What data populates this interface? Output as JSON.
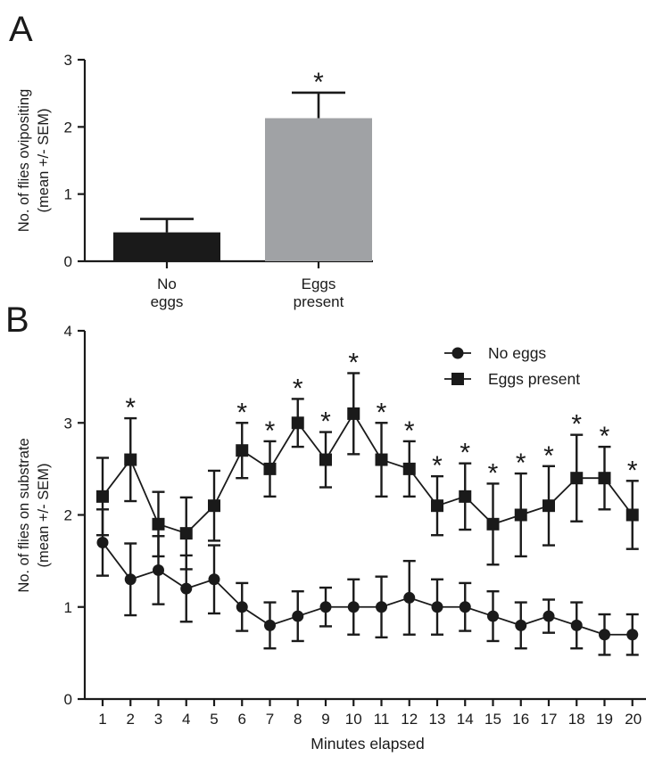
{
  "chart_data": [
    {
      "type": "bar",
      "panel_label": "A",
      "ylabel_line1": "No. of flies ovipositing",
      "ylabel_line2": "(mean +/- SEM)",
      "ylim": [
        0,
        3
      ],
      "yticks": [
        "0",
        "1",
        "2",
        "3"
      ],
      "categories": [
        {
          "line1": "No",
          "line2": "eggs"
        },
        {
          "line1": "Eggs",
          "line2": "present"
        }
      ],
      "values": [
        0.43,
        2.13
      ],
      "errors": [
        0.2,
        0.38
      ],
      "colors": [
        "#1a1a1a",
        "#a0a2a5"
      ],
      "significance": [
        "",
        "*"
      ]
    },
    {
      "type": "line",
      "panel_label": "B",
      "ylabel_line1": "No. of flies on substrate",
      "ylabel_line2": "(mean +/- SEM)",
      "xlabel": "Minutes elapsed",
      "ylim": [
        0,
        4
      ],
      "yticks": [
        "0",
        "1",
        "2",
        "3",
        "4"
      ],
      "x": [
        1,
        2,
        3,
        4,
        5,
        6,
        7,
        8,
        9,
        10,
        11,
        12,
        13,
        14,
        15,
        16,
        17,
        18,
        19,
        20
      ],
      "legend": {
        "placement": "top-right"
      },
      "series": [
        {
          "name": "No eggs",
          "marker": "circle",
          "values": [
            1.7,
            1.3,
            1.4,
            1.2,
            1.3,
            1.0,
            0.8,
            0.9,
            1.0,
            1.0,
            1.0,
            1.1,
            1.0,
            1.0,
            0.9,
            0.8,
            0.9,
            0.8,
            0.7,
            0.7
          ],
          "errors": [
            0.36,
            0.39,
            0.37,
            0.36,
            0.37,
            0.26,
            0.25,
            0.27,
            0.21,
            0.3,
            0.33,
            0.4,
            0.3,
            0.26,
            0.27,
            0.25,
            0.18,
            0.25,
            0.22,
            0.22
          ]
        },
        {
          "name": "Eggs present",
          "marker": "square",
          "values": [
            2.2,
            2.6,
            1.9,
            1.8,
            2.1,
            2.7,
            2.5,
            3.0,
            2.6,
            3.1,
            2.6,
            2.5,
            2.1,
            2.2,
            1.9,
            2.0,
            2.1,
            2.4,
            2.4,
            2.0
          ],
          "errors": [
            0.42,
            0.45,
            0.35,
            0.39,
            0.38,
            0.3,
            0.3,
            0.26,
            0.3,
            0.44,
            0.4,
            0.3,
            0.32,
            0.36,
            0.44,
            0.45,
            0.43,
            0.47,
            0.34,
            0.37
          ]
        }
      ],
      "significance": [
        "",
        "*",
        "",
        "",
        "",
        "*",
        "*",
        "*",
        "*",
        "*",
        "*",
        "*",
        "*",
        "*",
        "*",
        "*",
        "*",
        "*",
        "*",
        "*"
      ]
    }
  ]
}
